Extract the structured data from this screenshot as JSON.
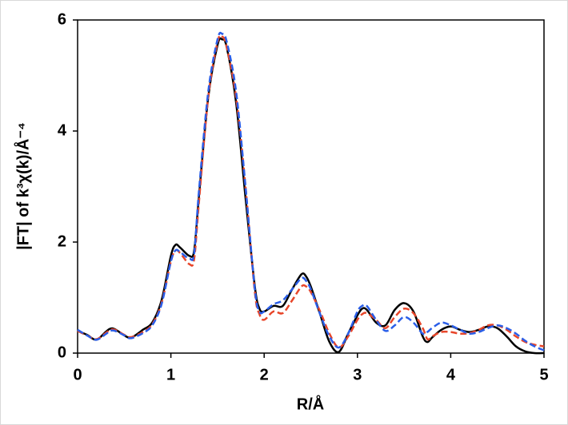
{
  "chart_data": {
    "type": "line",
    "x_label": "R/Å",
    "y_label": "|FT| of k³χ(k)/Å⁻⁴",
    "x": [
      0,
      0.1,
      0.2,
      0.3,
      0.35,
      0.4,
      0.5,
      0.55,
      0.6,
      0.7,
      0.8,
      0.9,
      1.0,
      1.05,
      1.1,
      1.2,
      1.25,
      1.3,
      1.4,
      1.5,
      1.55,
      1.6,
      1.7,
      1.8,
      1.9,
      1.95,
      2.0,
      2.1,
      2.2,
      2.3,
      2.4,
      2.45,
      2.5,
      2.6,
      2.7,
      2.8,
      2.9,
      3.0,
      3.05,
      3.1,
      3.2,
      3.3,
      3.4,
      3.5,
      3.6,
      3.7,
      3.75,
      3.8,
      3.9,
      4.0,
      4.1,
      4.2,
      4.3,
      4.4,
      4.5,
      4.6,
      4.7,
      4.8,
      4.9,
      5.0
    ],
    "series": [
      {
        "color": "#000000",
        "dash": false,
        "values": [
          0.4,
          0.33,
          0.24,
          0.38,
          0.44,
          0.43,
          0.32,
          0.28,
          0.3,
          0.42,
          0.55,
          0.95,
          1.75,
          1.95,
          1.9,
          1.75,
          1.85,
          2.8,
          4.6,
          5.55,
          5.65,
          5.5,
          4.5,
          2.8,
          1.2,
          0.8,
          0.75,
          0.85,
          0.85,
          1.15,
          1.42,
          1.38,
          1.2,
          0.7,
          0.2,
          0.02,
          0.35,
          0.68,
          0.8,
          0.78,
          0.55,
          0.5,
          0.78,
          0.9,
          0.75,
          0.3,
          0.2,
          0.28,
          0.42,
          0.48,
          0.42,
          0.38,
          0.42,
          0.48,
          0.45,
          0.3,
          0.12,
          0.03,
          0,
          0
        ]
      },
      {
        "color": "#e8462a",
        "dash": true,
        "values": [
          0.4,
          0.32,
          0.25,
          0.36,
          0.42,
          0.42,
          0.33,
          0.29,
          0.3,
          0.38,
          0.52,
          0.9,
          1.65,
          1.85,
          1.8,
          1.6,
          1.7,
          2.7,
          4.6,
          5.6,
          5.7,
          5.5,
          4.6,
          3.0,
          1.1,
          0.7,
          0.6,
          0.75,
          0.72,
          0.95,
          1.2,
          1.2,
          1.1,
          0.75,
          0.35,
          0.1,
          0.3,
          0.6,
          0.7,
          0.72,
          0.6,
          0.45,
          0.65,
          0.8,
          0.72,
          0.45,
          0.25,
          0.3,
          0.38,
          0.38,
          0.35,
          0.36,
          0.42,
          0.5,
          0.5,
          0.42,
          0.3,
          0.2,
          0.15,
          0.12
        ]
      },
      {
        "color": "#2a5ee8",
        "dash": true,
        "values": [
          0.42,
          0.32,
          0.24,
          0.34,
          0.4,
          0.4,
          0.32,
          0.27,
          0.28,
          0.36,
          0.5,
          0.88,
          1.65,
          1.85,
          1.82,
          1.7,
          1.8,
          2.9,
          4.7,
          5.65,
          5.75,
          5.6,
          4.7,
          3.0,
          1.15,
          0.75,
          0.75,
          0.88,
          0.95,
          1.15,
          1.35,
          1.3,
          1.15,
          0.7,
          0.3,
          0.1,
          0.35,
          0.75,
          0.85,
          0.85,
          0.6,
          0.4,
          0.5,
          0.65,
          0.55,
          0.35,
          0.38,
          0.45,
          0.55,
          0.5,
          0.42,
          0.35,
          0.38,
          0.45,
          0.5,
          0.45,
          0.35,
          0.22,
          0.12,
          0.05
        ]
      }
    ],
    "xlim": [
      0,
      5
    ],
    "xticks": [
      0,
      1,
      2,
      3,
      4,
      5
    ],
    "ylim": [
      0,
      6
    ],
    "yticks": [
      0,
      2,
      4,
      6
    ],
    "grid": false
  }
}
